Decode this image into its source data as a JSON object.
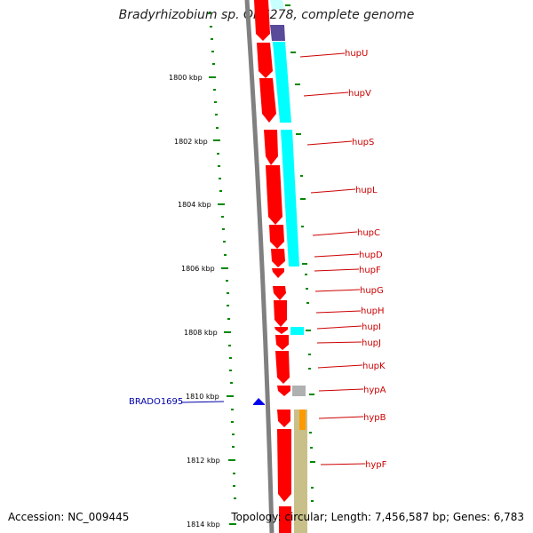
{
  "title": "Bradyrhizobium sp. ORS278, complete genome",
  "accession": "Accession: NC_009445",
  "topology": "Topology: circular; Length: 7,456,587 bp; Genes: 6,783",
  "kbp_labels": [
    "1800 kbp",
    "1802 kbp",
    "1804 kbp",
    "1806 kbp",
    "1808 kbp",
    "1810 kbp",
    "1812 kbp",
    "1814 kbp"
  ],
  "gene_labels": [
    "hupU",
    "hupV",
    "hupS",
    "hupL",
    "hupC",
    "hupD",
    "hupF",
    "hupG",
    "hupH",
    "hupI",
    "hupJ",
    "hupK",
    "hypA",
    "hypB",
    "hypF"
  ],
  "left_gene_label": "BRADO1695",
  "colors": {
    "gene": "#ff0000",
    "cyan_track": "#00ffff",
    "purple_track": "#5a4a9a",
    "olive_track": "#c8c088",
    "orange_track": "#ff9900",
    "gray_track": "#b0b0b0",
    "tick": "#008800",
    "label_red": "#cc0000",
    "label_blue": "#0000aa",
    "backbone": "#808080"
  }
}
